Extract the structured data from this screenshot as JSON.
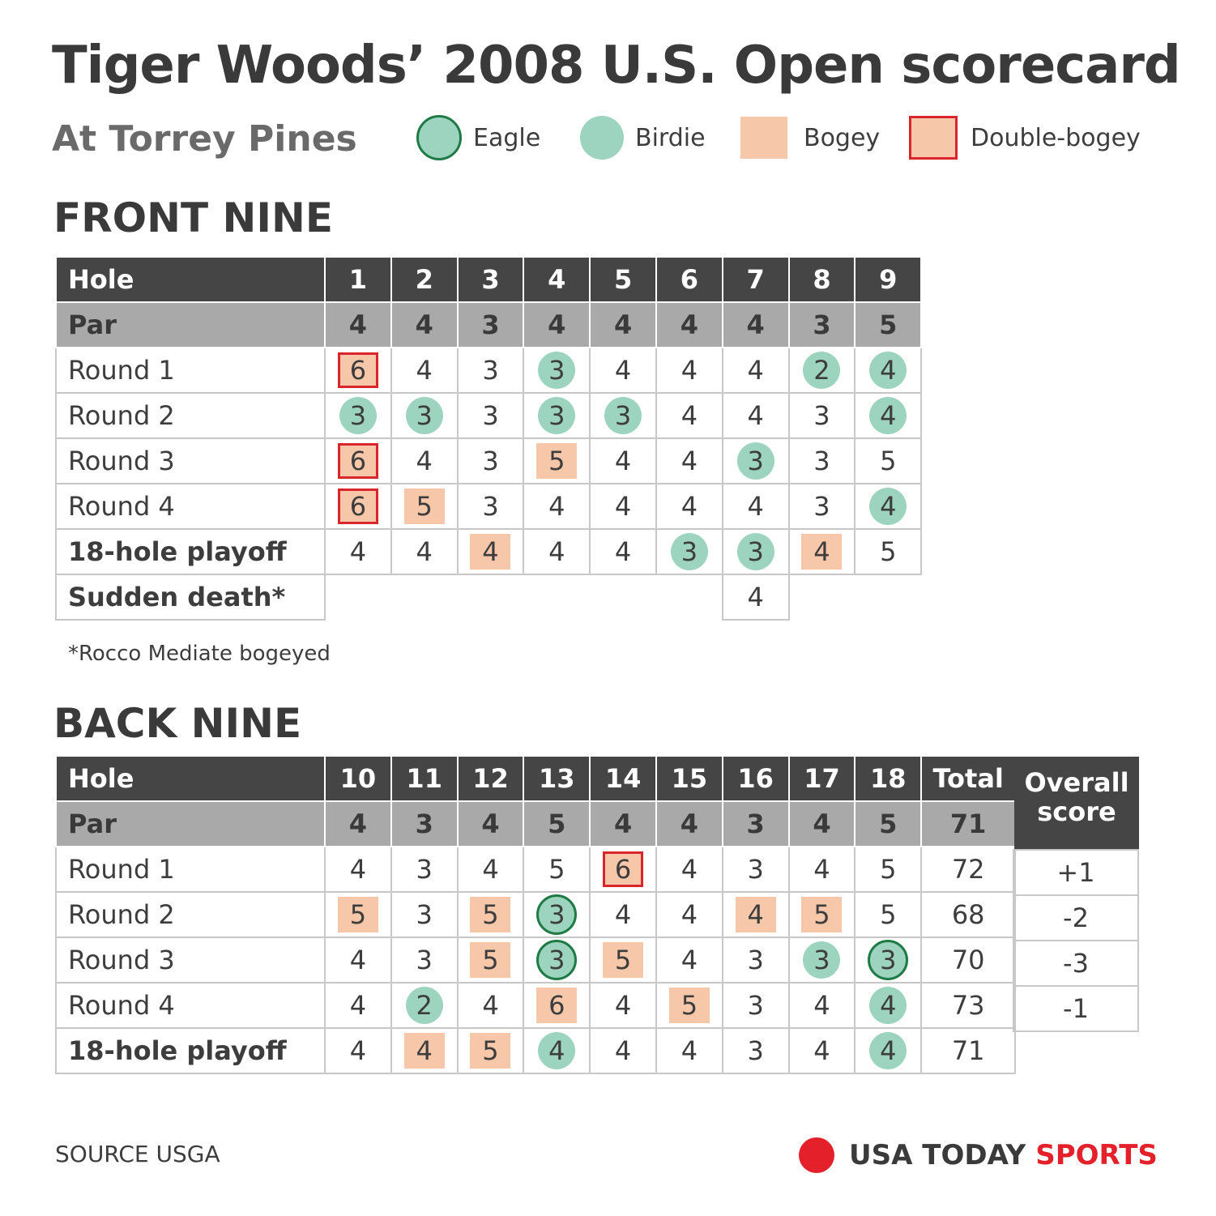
{
  "title": "Tiger Woods’ 2008 U.S. Open scorecard",
  "subtitle": "At Torrey Pines",
  "legend": [
    {
      "key": "eagle",
      "label": "Eagle"
    },
    {
      "key": "birdie",
      "label": "Birdie"
    },
    {
      "key": "bogey",
      "label": "Bogey"
    },
    {
      "key": "dbogey",
      "label": "Double-bogey"
    }
  ],
  "colors": {
    "birdie_fill": "#9dd4bf",
    "eagle_ring": "#1f7a45",
    "bogey_fill": "#f6c7a8",
    "double_bogey_border": "#d8262c",
    "header_bg": "#454545",
    "par_bg": "#a9a9a9",
    "brand_red": "#e4202b"
  },
  "front": {
    "heading": "FRONT NINE",
    "hole_label": "Hole",
    "holes": [
      "1",
      "2",
      "3",
      "4",
      "5",
      "6",
      "7",
      "8",
      "9"
    ],
    "par_label": "Par",
    "par": [
      "4",
      "4",
      "3",
      "4",
      "4",
      "4",
      "4",
      "3",
      "5"
    ],
    "rows": [
      {
        "label": "Round 1",
        "bold": false,
        "scores": [
          "6",
          "4",
          "3",
          "3",
          "4",
          "4",
          "4",
          "2",
          "4"
        ],
        "marks": [
          "dbogey",
          "",
          "",
          "birdie",
          "",
          "",
          "",
          "birdie",
          "birdie"
        ]
      },
      {
        "label": "Round 2",
        "bold": false,
        "scores": [
          "3",
          "3",
          "3",
          "3",
          "3",
          "4",
          "4",
          "3",
          "4"
        ],
        "marks": [
          "birdie",
          "birdie",
          "",
          "birdie",
          "birdie",
          "",
          "",
          "",
          "birdie"
        ]
      },
      {
        "label": "Round 3",
        "bold": false,
        "scores": [
          "6",
          "4",
          "3",
          "5",
          "4",
          "4",
          "3",
          "3",
          "5"
        ],
        "marks": [
          "dbogey",
          "",
          "",
          "bogey",
          "",
          "",
          "birdie",
          "",
          ""
        ]
      },
      {
        "label": "Round 4",
        "bold": false,
        "scores": [
          "6",
          "5",
          "3",
          "4",
          "4",
          "4",
          "4",
          "3",
          "4"
        ],
        "marks": [
          "dbogey",
          "bogey",
          "",
          "",
          "",
          "",
          "",
          "",
          "birdie"
        ]
      },
      {
        "label": "18-hole playoff",
        "bold": true,
        "scores": [
          "4",
          "4",
          "4",
          "4",
          "4",
          "3",
          "3",
          "4",
          "5"
        ],
        "marks": [
          "",
          "",
          "bogey",
          "",
          "",
          "birdie",
          "birdie",
          "bogey",
          ""
        ]
      }
    ],
    "sudden_death": {
      "label": "Sudden death*",
      "hole": "7",
      "score": "4"
    },
    "footnote": "*Rocco Mediate bogeyed"
  },
  "back": {
    "heading": "BACK NINE",
    "hole_label": "Hole",
    "holes": [
      "10",
      "11",
      "12",
      "13",
      "14",
      "15",
      "16",
      "17",
      "18"
    ],
    "total_label": "Total",
    "overall_label": "Overall score",
    "par_label": "Par",
    "par": [
      "4",
      "3",
      "4",
      "5",
      "4",
      "4",
      "3",
      "4",
      "5"
    ],
    "par_total": "71",
    "rows": [
      {
        "label": "Round 1",
        "bold": false,
        "scores": [
          "4",
          "3",
          "4",
          "5",
          "6",
          "4",
          "3",
          "4",
          "5"
        ],
        "marks": [
          "",
          "",
          "",
          "",
          "dbogey",
          "",
          "",
          "",
          ""
        ],
        "total": "72",
        "overall": "+1"
      },
      {
        "label": "Round 2",
        "bold": false,
        "scores": [
          "5",
          "3",
          "5",
          "3",
          "4",
          "4",
          "4",
          "5",
          "5"
        ],
        "marks": [
          "bogey",
          "",
          "bogey",
          "eagle",
          "",
          "",
          "bogey",
          "bogey",
          ""
        ],
        "total": "68",
        "overall": "-2"
      },
      {
        "label": "Round 3",
        "bold": false,
        "scores": [
          "4",
          "3",
          "5",
          "3",
          "5",
          "4",
          "3",
          "3",
          "3"
        ],
        "marks": [
          "",
          "",
          "bogey",
          "eagle",
          "bogey",
          "",
          "",
          "birdie",
          "eagle"
        ],
        "total": "70",
        "overall": "-3"
      },
      {
        "label": "Round 4",
        "bold": false,
        "scores": [
          "4",
          "2",
          "4",
          "6",
          "4",
          "5",
          "3",
          "4",
          "4"
        ],
        "marks": [
          "",
          "birdie",
          "",
          "bogey",
          "",
          "bogey",
          "",
          "",
          "birdie"
        ],
        "total": "73",
        "overall": "-1"
      },
      {
        "label": "18-hole playoff",
        "bold": true,
        "scores": [
          "4",
          "4",
          "5",
          "4",
          "4",
          "4",
          "3",
          "4",
          "4"
        ],
        "marks": [
          "",
          "bogey",
          "bogey",
          "birdie",
          "",
          "",
          "",
          "",
          "birdie"
        ],
        "total": "71",
        "overall": ""
      }
    ]
  },
  "source": "SOURCE USGA",
  "brand": {
    "name": "USA TODAY",
    "section": "SPORTS"
  }
}
